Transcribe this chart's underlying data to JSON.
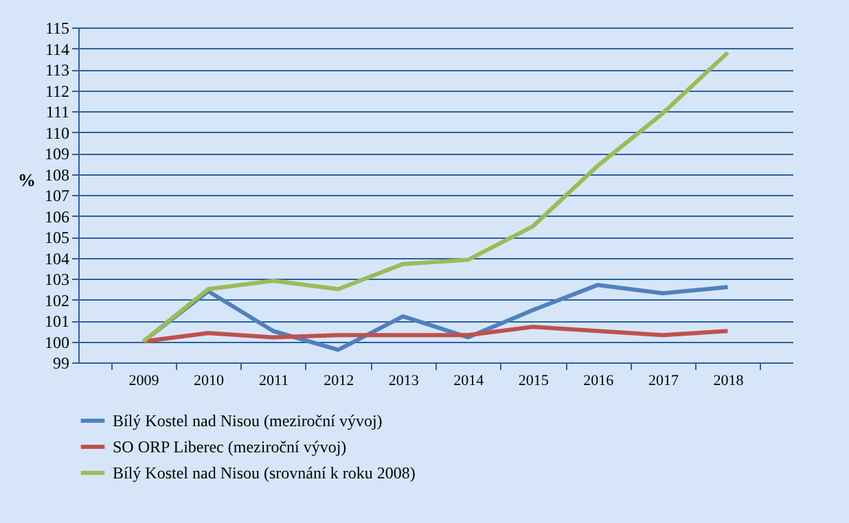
{
  "chart_data": {
    "type": "line",
    "ylabel": "%",
    "categories": [
      "2009",
      "2010",
      "2011",
      "2012",
      "2013",
      "2014",
      "2015",
      "2016",
      "2017",
      "2018"
    ],
    "series": [
      {
        "name": "Bílý Kostel nad Nisou (meziroční vývoj)",
        "color": "#4f81bd",
        "values": [
          100,
          102.4,
          100.5,
          99.6,
          101.2,
          100.2,
          101.5,
          102.7,
          102.3,
          102.6
        ]
      },
      {
        "name": "SO ORP Liberec (meziroční vývoj)",
        "color": "#c0504d",
        "values": [
          100,
          100.4,
          100.2,
          100.3,
          100.3,
          100.3,
          100.7,
          100.5,
          100.3,
          100.5
        ]
      },
      {
        "name": "Bílý Kostel nad Nisou (srovnání k roku 2008)",
        "color": "#9bbb59",
        "values": [
          100,
          102.5,
          102.9,
          102.5,
          103.7,
          103.9,
          105.5,
          108.4,
          110.9,
          113.8
        ]
      }
    ],
    "ylim": [
      99,
      115
    ],
    "yticks": [
      99,
      100,
      101,
      102,
      103,
      104,
      105,
      106,
      107,
      108,
      109,
      110,
      111,
      112,
      113,
      114,
      115
    ],
    "grid": "y",
    "legend": "bottom",
    "marker": "none",
    "line_style": "solid"
  }
}
